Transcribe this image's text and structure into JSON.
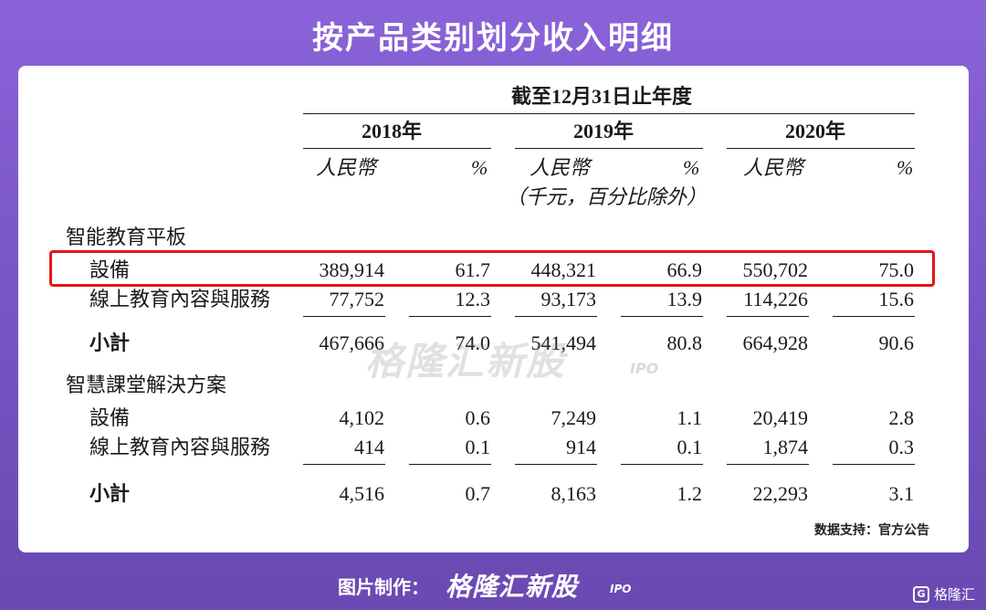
{
  "title": "按产品类别划分收入明细",
  "table": {
    "period_header": "截至12月31日止年度",
    "years": [
      "2018年",
      "2019年",
      "2020年"
    ],
    "unit_rmb": "人民幣",
    "unit_pct": "%",
    "unit_note": "（千元，百分比除外）",
    "sections": [
      {
        "name": "智能教育平板",
        "rows": [
          {
            "label": "設備",
            "values": [
              "389,914",
              "61.7",
              "448,321",
              "66.9",
              "550,702",
              "75.0"
            ]
          },
          {
            "label": "線上教育內容與服務",
            "values": [
              "77,752",
              "12.3",
              "93,173",
              "13.9",
              "114,226",
              "15.6"
            ]
          }
        ],
        "subtotal": {
          "label": "小計",
          "values": [
            "467,666",
            "74.0",
            "541,494",
            "80.8",
            "664,928",
            "90.6"
          ]
        }
      },
      {
        "name": "智慧課堂解決方案",
        "rows": [
          {
            "label": "設備",
            "values": [
              "4,102",
              "0.6",
              "7,249",
              "1.1",
              "20,419",
              "2.8"
            ]
          },
          {
            "label": "線上教育內容與服務",
            "values": [
              "414",
              "0.1",
              "914",
              "0.1",
              "1,874",
              "0.3"
            ]
          }
        ],
        "subtotal": {
          "label": "小計",
          "values": [
            "4,516",
            "0.7",
            "8,163",
            "1.2",
            "22,293",
            "3.1"
          ]
        }
      }
    ]
  },
  "watermark": {
    "text": "格隆汇新股",
    "suffix": "IPO"
  },
  "source": "数据支持：官方公告",
  "footer": {
    "label": "图片制作：",
    "brand": "格隆汇新股",
    "brand_suffix": "IPO"
  },
  "corner_brand": {
    "logo": "G",
    "text": "格隆汇"
  },
  "colors": {
    "background": "#7a56c6",
    "highlight": "#e01818"
  }
}
